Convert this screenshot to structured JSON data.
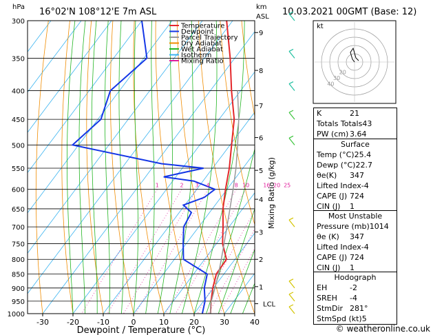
{
  "header": {
    "hpa_label": "hPa",
    "location": "16°02'N 108°12'E 7m ASL",
    "km_label": "km",
    "asl_label": "ASL",
    "datetime": "10.03.2021 00GMT (Base: 12)"
  },
  "legend": [
    {
      "label": "Temperature",
      "color": "#e4262a"
    },
    {
      "label": "Dewpoint",
      "color": "#1436e6"
    },
    {
      "label": "Parcel Trajectory",
      "color": "#999999"
    },
    {
      "label": "Dry Adiabat",
      "color": "#f08c00"
    },
    {
      "label": "Wet Adiabat",
      "color": "#21b521"
    },
    {
      "label": "Isotherm",
      "color": "#3cb4f0"
    },
    {
      "label": "Mixing Ratio",
      "color": "#e01e9c"
    }
  ],
  "chart_data": {
    "type": "line",
    "title": "",
    "xlabel": "Dewpoint / Temperature (°C)",
    "ylabel": "",
    "xlim": [
      -35,
      40
    ],
    "x_ticks": [
      "-30",
      "-20",
      "-10",
      "0",
      "10",
      "20",
      "30",
      "40"
    ],
    "pressure_levels": [
      "300",
      "350",
      "400",
      "450",
      "500",
      "550",
      "600",
      "650",
      "700",
      "750",
      "800",
      "850",
      "900",
      "950",
      "1000"
    ],
    "km_ticks": [
      {
        "km": "9",
        "p": 315
      },
      {
        "km": "8",
        "p": 368
      },
      {
        "km": "7",
        "p": 425
      },
      {
        "km": "6",
        "p": 485
      },
      {
        "km": "5",
        "p": 555
      },
      {
        "km": "4",
        "p": 625
      },
      {
        "km": "3",
        "p": 715
      },
      {
        "km": "2",
        "p": 800
      },
      {
        "km": "1",
        "p": 895
      },
      {
        "km": "LCL",
        "p": 960
      }
    ],
    "mixing_ratio_axis": "Mixing Ratio (g/kg)",
    "mixing_ratio_labels": [
      "1",
      "2",
      "3",
      "4",
      "8",
      "10",
      "16",
      "20",
      "25"
    ],
    "mixing_ratio_values": [
      1,
      2,
      3,
      4,
      8,
      10,
      16,
      20,
      25
    ],
    "series": [
      {
        "name": "Temperature",
        "color": "#e4262a",
        "p": [
          1000,
          950,
          900,
          850,
          800,
          750,
          700,
          650,
          600,
          550,
          500,
          450,
          400,
          350,
          300
        ],
        "t": [
          25.4,
          22.5,
          19.8,
          17.5,
          17.2,
          12.0,
          8.0,
          3.5,
          -0.5,
          -4.5,
          -9.5,
          -15.0,
          -23.0,
          -31.5,
          -42.0
        ]
      },
      {
        "name": "Dewpoint",
        "color": "#1436e6",
        "p": [
          1000,
          950,
          900,
          850,
          800,
          750,
          700,
          660,
          640,
          620,
          600,
          580,
          570,
          550,
          540,
          500,
          450,
          400,
          350,
          300
        ],
        "t": [
          22.7,
          20.5,
          17.0,
          14.5,
          3.0,
          -1.0,
          -5.0,
          -6.0,
          -10.5,
          -5.5,
          -4.0,
          -13.0,
          -24.0,
          -13.0,
          -28.0,
          -62.0,
          -59.0,
          -63.0,
          -59.0,
          -70.0
        ]
      },
      {
        "name": "Parcel Trajectory",
        "color": "#999999",
        "p": [
          1000,
          960,
          900,
          850,
          800,
          750,
          700,
          650,
          600,
          550,
          500,
          450,
          400
        ],
        "t": [
          25.4,
          23.0,
          20.5,
          18.2,
          15.5,
          12.5,
          9.3,
          5.8,
          2.0,
          -2.3,
          -7.5,
          -13.5,
          -21.0
        ]
      }
    ]
  },
  "hodograph": {
    "label": "kt",
    "ring_labels": [
      "40",
      "30",
      "20"
    ]
  },
  "indices": [
    {
      "label": "K",
      "value": "21"
    },
    {
      "label": "Totals Totals",
      "value": "43"
    },
    {
      "label": "PW (cm)",
      "value": "3.64"
    }
  ],
  "surface": {
    "title": "Surface",
    "rows": [
      {
        "label": "Temp (°C)",
        "value": "25.4"
      },
      {
        "label": "Dewp (°C)",
        "value": "22.7"
      },
      {
        "label": "θe(K)",
        "value": "347"
      },
      {
        "label": "Lifted Index",
        "value": "-4"
      },
      {
        "label": "CAPE (J)",
        "value": "724"
      },
      {
        "label": "CIN (J)",
        "value": "1"
      }
    ]
  },
  "most_unstable": {
    "title": "Most Unstable",
    "rows": [
      {
        "label": "Pressure (mb)",
        "value": "1014"
      },
      {
        "label": "θe (K)",
        "value": "347"
      },
      {
        "label": "Lifted Index",
        "value": "-4"
      },
      {
        "label": "CAPE (J)",
        "value": "724"
      },
      {
        "label": "CIN (J)",
        "value": "1"
      }
    ]
  },
  "hodograph_table": {
    "title": "Hodograph",
    "rows": [
      {
        "label": "EH",
        "value": "-2"
      },
      {
        "label": "SREH",
        "value": "-4"
      },
      {
        "label": "StmDir",
        "value": "281°"
      },
      {
        "label": "StmSpd (kt)",
        "value": "5"
      }
    ]
  },
  "footer": "© weatheronline.co.uk"
}
